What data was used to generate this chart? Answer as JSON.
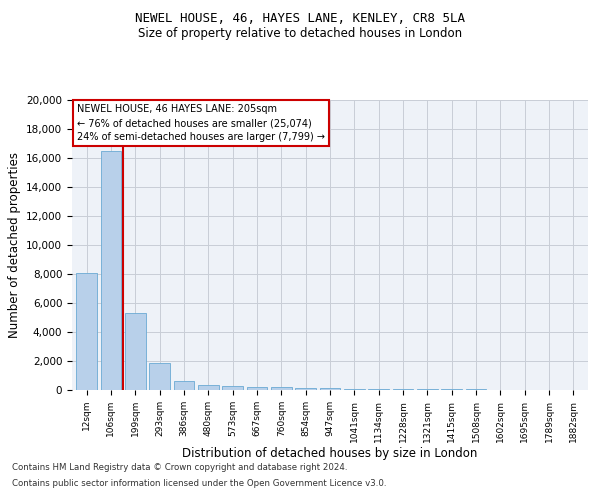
{
  "title1": "NEWEL HOUSE, 46, HAYES LANE, KENLEY, CR8 5LA",
  "title2": "Size of property relative to detached houses in London",
  "xlabel": "Distribution of detached houses by size in London",
  "ylabel": "Number of detached properties",
  "bar_color": "#b8d0ea",
  "bar_edge_color": "#6aaad4",
  "vline_color": "#cc0000",
  "annotation_text": "NEWEL HOUSE, 46 HAYES LANE: 205sqm\n← 76% of detached houses are smaller (25,074)\n24% of semi-detached houses are larger (7,799) →",
  "categories": [
    "12sqm",
    "106sqm",
    "199sqm",
    "293sqm",
    "386sqm",
    "480sqm",
    "573sqm",
    "667sqm",
    "760sqm",
    "854sqm",
    "947sqm",
    "1041sqm",
    "1134sqm",
    "1228sqm",
    "1321sqm",
    "1415sqm",
    "1508sqm",
    "1602sqm",
    "1695sqm",
    "1789sqm",
    "1882sqm"
  ],
  "bar_heights": [
    8100,
    16500,
    5300,
    1850,
    650,
    350,
    250,
    200,
    175,
    150,
    120,
    100,
    85,
    70,
    55,
    45,
    35,
    28,
    22,
    18,
    14
  ],
  "ylim": [
    0,
    20000
  ],
  "yticks": [
    0,
    2000,
    4000,
    6000,
    8000,
    10000,
    12000,
    14000,
    16000,
    18000,
    20000
  ],
  "footnote1": "Contains HM Land Registry data © Crown copyright and database right 2024.",
  "footnote2": "Contains public sector information licensed under the Open Government Licence v3.0.",
  "bg_color": "#ffffff",
  "plot_bg_color": "#eef2f8",
  "grid_color": "#c8cdd6"
}
